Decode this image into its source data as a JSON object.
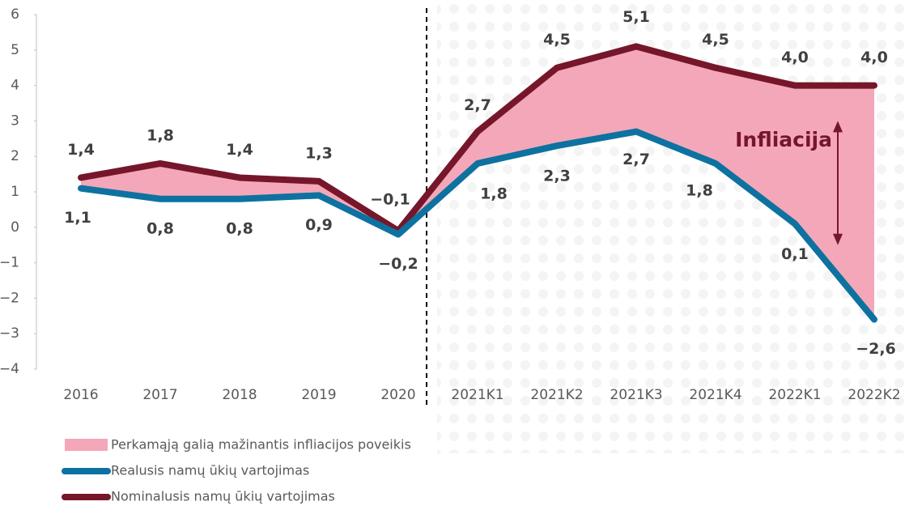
{
  "chart_data": {
    "type": "line",
    "categories": [
      "2016",
      "2017",
      "2018",
      "2019",
      "2020",
      "2021K1",
      "2021K2",
      "2021K3",
      "2021K4",
      "2022K1",
      "2022K2"
    ],
    "series": [
      {
        "name": "Nominalusis namų ūkių vartojimas",
        "color": "#76162a",
        "values": [
          1.4,
          1.8,
          1.4,
          1.3,
          -0.1,
          2.7,
          4.5,
          5.1,
          4.5,
          4.0,
          4.0
        ],
        "value_labels": [
          "1,4",
          "1,8",
          "1,4",
          "1,3",
          "−0,1",
          "2,7",
          "4,5",
          "5,1",
          "4,5",
          "4,0",
          "4,0"
        ]
      },
      {
        "name": "Realusis namų ūkių vartojimas",
        "color": "#0d72a0",
        "values": [
          1.1,
          0.8,
          0.8,
          0.9,
          -0.2,
          1.8,
          2.3,
          2.7,
          1.8,
          0.1,
          -2.6
        ],
        "value_labels": [
          "1,1",
          "0,8",
          "0,8",
          "0,9",
          "−0,2",
          "1,8",
          "2,3",
          "2,7",
          "1,8",
          "0,1",
          "−2,6"
        ]
      }
    ],
    "fill_between": {
      "name": "Perkamąją galią mažinantis infliacijos poveikis",
      "color": "#f4a7b9"
    },
    "annotation": "Infliacija",
    "ylim": [
      -4,
      6
    ],
    "yticks": [
      {
        "value": -4,
        "label": "−4"
      },
      {
        "value": -3,
        "label": "−3"
      },
      {
        "value": -2,
        "label": "−2"
      },
      {
        "value": -1,
        "label": "−1"
      },
      0,
      1,
      2,
      3,
      4,
      5,
      6
    ]
  }
}
